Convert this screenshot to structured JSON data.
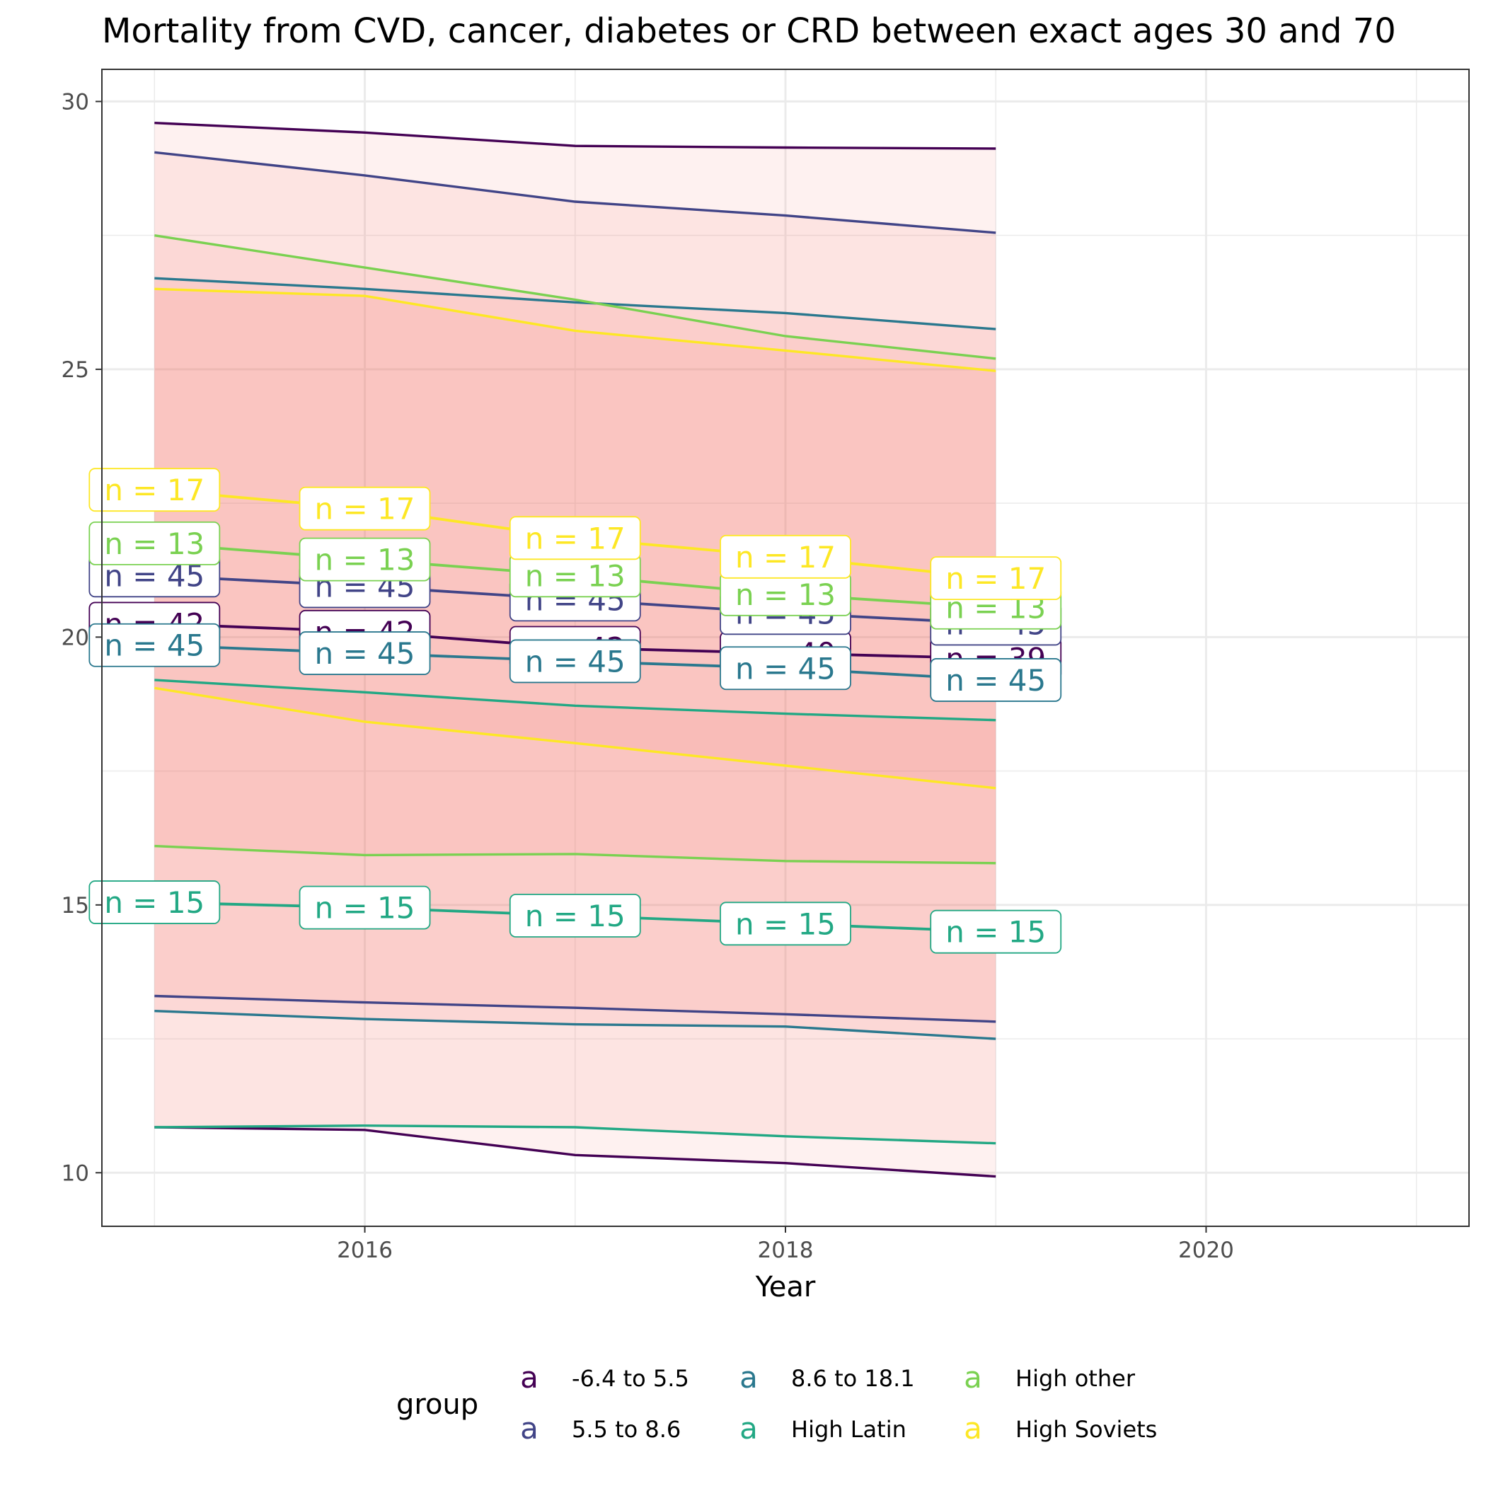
{
  "chart_data": {
    "type": "line",
    "title": "Mortality from CVD, cancer, diabetes or CRD between exact ages 30 and 70",
    "xlabel": "Year",
    "ylabel": "",
    "xlim": [
      2014.75,
      2021.25
    ],
    "ylim": [
      9,
      30.6
    ],
    "xticks": [
      2016,
      2018,
      2020
    ],
    "yticks": [
      10,
      15,
      20,
      25,
      30
    ],
    "grid": true,
    "legend": {
      "title": "group",
      "position": "bottom",
      "key_glyph": "a"
    },
    "x": [
      2015,
      2016,
      2017,
      2018,
      2019
    ],
    "series": [
      {
        "name": "-6.4 to 5.5",
        "color": "#440154",
        "upper": [
          29.6,
          29.42,
          29.17,
          29.14,
          29.12
        ],
        "mean": [
          20.25,
          20.1,
          19.8,
          19.7,
          19.6
        ],
        "lower": [
          10.85,
          10.8,
          10.33,
          10.18,
          9.93
        ],
        "labels": [
          "n = 42",
          "n = 42",
          "n = 42",
          "n = 40",
          "n = 39"
        ]
      },
      {
        "name": "5.5 to 8.6",
        "color": "#414487",
        "upper": [
          29.05,
          28.62,
          28.13,
          27.87,
          27.55
        ],
        "mean": [
          21.15,
          20.95,
          20.7,
          20.45,
          20.25
        ],
        "lower": [
          13.3,
          13.18,
          13.08,
          12.96,
          12.82
        ],
        "labels": [
          "n = 45",
          "n = 45",
          "n = 45",
          "n = 45",
          "n = 45"
        ]
      },
      {
        "name": "8.6 to 18.1",
        "color": "#2A788E",
        "upper": [
          26.7,
          26.5,
          26.25,
          26.05,
          25.75
        ],
        "mean": [
          19.85,
          19.7,
          19.55,
          19.42,
          19.2
        ],
        "lower": [
          13.02,
          12.87,
          12.77,
          12.73,
          12.5
        ],
        "labels": [
          "n = 45",
          "n = 45",
          "n = 45",
          "n = 45",
          "n = 45"
        ]
      },
      {
        "name": "High Latin",
        "color": "#22A884",
        "upper": [
          19.2,
          18.97,
          18.72,
          18.57,
          18.45
        ],
        "mean": [
          15.05,
          14.95,
          14.8,
          14.65,
          14.5
        ],
        "lower": [
          10.85,
          10.88,
          10.85,
          10.68,
          10.55
        ],
        "labels": [
          "n = 15",
          "n = 15",
          "n = 15",
          "n = 15",
          "n = 15"
        ]
      },
      {
        "name": "High other",
        "color": "#7AD151",
        "upper": [
          27.5,
          26.9,
          26.3,
          25.62,
          25.2
        ],
        "mean": [
          21.75,
          21.45,
          21.15,
          20.8,
          20.55
        ],
        "lower": [
          16.1,
          15.93,
          15.95,
          15.82,
          15.78
        ],
        "labels": [
          "n = 13",
          "n = 13",
          "n = 13",
          "n = 13",
          "n = 13"
        ]
      },
      {
        "name": "High Soviets",
        "color": "#FDE725",
        "upper": [
          26.5,
          26.37,
          25.72,
          25.35,
          24.97
        ],
        "mean": [
          22.75,
          22.4,
          21.85,
          21.5,
          21.1
        ],
        "lower": [
          19.05,
          18.42,
          18.02,
          17.6,
          17.18
        ],
        "labels": [
          "n = 17",
          "n = 17",
          "n = 17",
          "n = 17",
          "n = 17"
        ]
      }
    ]
  }
}
